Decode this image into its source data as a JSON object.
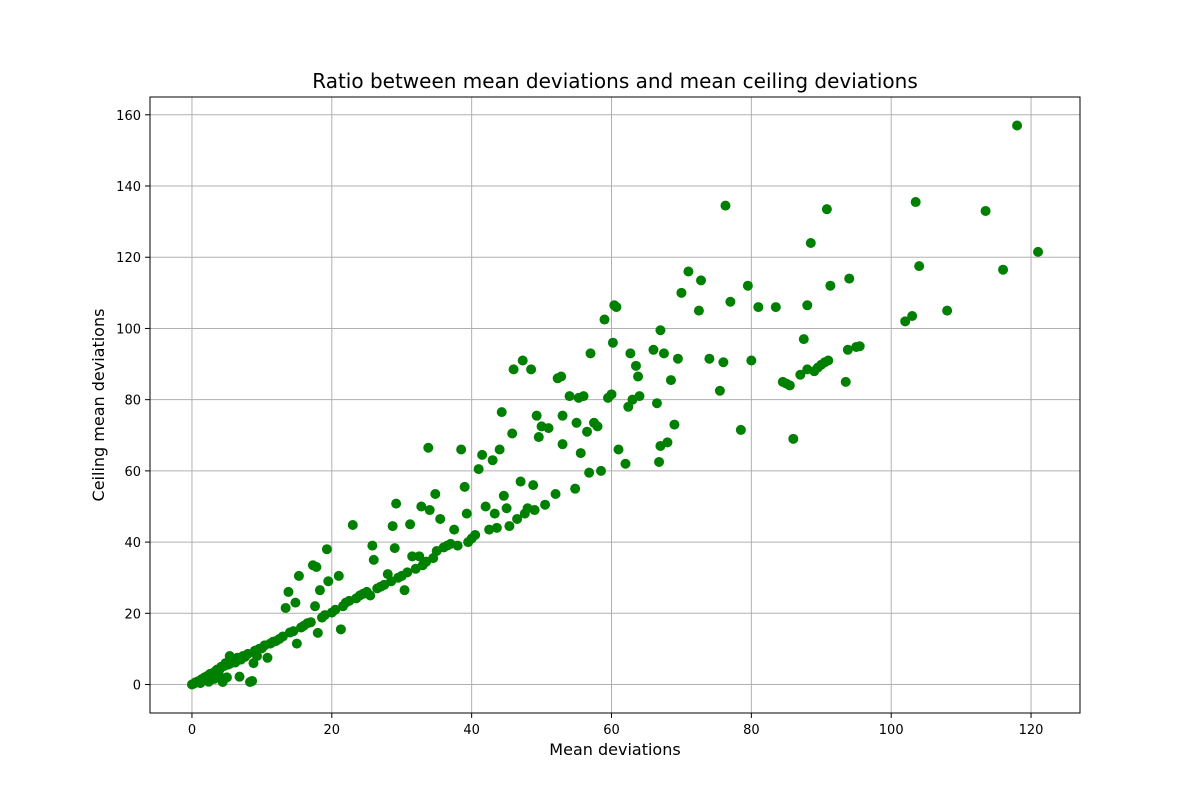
{
  "chart_data": {
    "type": "scatter",
    "title": "Ratio between mean deviations and mean ceiling deviations",
    "xlabel": "Mean deviations",
    "ylabel": "Ceiling mean deviations",
    "xlim": [
      -6,
      127
    ],
    "ylim": [
      -8,
      165
    ],
    "xticks": [
      0,
      20,
      40,
      60,
      80,
      100,
      120
    ],
    "yticks": [
      0,
      20,
      40,
      60,
      80,
      100,
      120,
      140,
      160
    ],
    "grid": true,
    "marker_color": "#008000",
    "series": [
      {
        "points": [
          [
            0,
            0
          ],
          [
            0.3,
            0.3
          ],
          [
            0.5,
            0.6
          ],
          [
            0.8,
            0.8
          ],
          [
            1,
            1
          ],
          [
            1.2,
            0.4
          ],
          [
            1.4,
            1.5
          ],
          [
            1.6,
            1.2
          ],
          [
            1.8,
            2
          ],
          [
            2,
            1.9
          ],
          [
            2.2,
            2.4
          ],
          [
            2.4,
            0.8
          ],
          [
            2.6,
            3
          ],
          [
            2.8,
            2.4
          ],
          [
            3,
            3.2
          ],
          [
            3.2,
            1.6
          ],
          [
            3.4,
            3.8
          ],
          [
            3.6,
            4.2
          ],
          [
            3.8,
            3
          ],
          [
            4,
            4.4
          ],
          [
            4.2,
            5
          ],
          [
            4.4,
            0.7
          ],
          [
            4.6,
            5.2
          ],
          [
            4.8,
            6
          ],
          [
            5,
            2
          ],
          [
            5.2,
            5.6
          ],
          [
            5.4,
            8
          ],
          [
            5.6,
            6
          ],
          [
            5.8,
            6.4
          ],
          [
            6,
            7
          ],
          [
            6.2,
            6.2
          ],
          [
            6.5,
            7.5
          ],
          [
            6.8,
            2.2
          ],
          [
            7,
            7
          ],
          [
            7.3,
            8
          ],
          [
            7.6,
            7.8
          ],
          [
            8,
            8.6
          ],
          [
            8.3,
            0.7
          ],
          [
            8.6,
            1
          ],
          [
            8.8,
            6
          ],
          [
            9,
            9.5
          ],
          [
            9.3,
            8
          ],
          [
            9.6,
            10
          ],
          [
            10,
            10.2
          ],
          [
            10.4,
            11
          ],
          [
            10.8,
            7.5
          ],
          [
            11.2,
            11.5
          ],
          [
            11.6,
            12
          ],
          [
            12,
            12.2
          ],
          [
            12.5,
            12.8
          ],
          [
            13,
            13.5
          ],
          [
            13.4,
            21.5
          ],
          [
            13.8,
            26
          ],
          [
            14,
            14.6
          ],
          [
            14.5,
            15
          ],
          [
            14.8,
            23
          ],
          [
            15,
            11.5
          ],
          [
            15.3,
            30.5
          ],
          [
            15.6,
            16
          ],
          [
            16,
            16.5
          ],
          [
            16.5,
            17.2
          ],
          [
            17,
            17.5
          ],
          [
            17.3,
            33.5
          ],
          [
            17.6,
            22
          ],
          [
            17.8,
            33
          ],
          [
            18,
            14.5
          ],
          [
            18.3,
            26.5
          ],
          [
            18.6,
            18.8
          ],
          [
            19,
            19.5
          ],
          [
            19.3,
            38
          ],
          [
            19.5,
            29
          ],
          [
            20,
            20.2
          ],
          [
            20.5,
            21
          ],
          [
            21,
            30.5
          ],
          [
            21.3,
            15.5
          ],
          [
            21.6,
            22
          ],
          [
            22,
            23
          ],
          [
            22.5,
            23.5
          ],
          [
            23,
            44.8
          ],
          [
            23.5,
            24.2
          ],
          [
            24,
            25
          ],
          [
            24.5,
            25.5
          ],
          [
            25,
            26
          ],
          [
            25.5,
            25
          ],
          [
            25.8,
            39
          ],
          [
            26,
            35
          ],
          [
            26.5,
            27
          ],
          [
            27,
            27.5
          ],
          [
            27.5,
            28
          ],
          [
            28,
            31
          ],
          [
            28.5,
            29
          ],
          [
            28.7,
            44.5
          ],
          [
            29,
            38.3
          ],
          [
            29.2,
            50.8
          ],
          [
            29.5,
            30
          ],
          [
            30,
            30.5
          ],
          [
            30.4,
            26.5
          ],
          [
            30.8,
            31.5
          ],
          [
            31.2,
            45
          ],
          [
            31.5,
            36
          ],
          [
            32,
            32.5
          ],
          [
            32.5,
            36
          ],
          [
            32.8,
            50
          ],
          [
            33,
            33.5
          ],
          [
            33.5,
            34.5
          ],
          [
            33.8,
            66.5
          ],
          [
            34,
            49
          ],
          [
            34.5,
            35.5
          ],
          [
            34.8,
            53.5
          ],
          [
            35,
            37.5
          ],
          [
            35.5,
            46.5
          ],
          [
            36,
            38.5
          ],
          [
            36.5,
            39
          ],
          [
            37,
            39.5
          ],
          [
            37.5,
            43.5
          ],
          [
            38,
            39
          ],
          [
            38.5,
            66
          ],
          [
            39,
            55.5
          ],
          [
            39.3,
            48
          ],
          [
            39.5,
            40
          ],
          [
            40,
            41
          ],
          [
            40.5,
            42
          ],
          [
            41,
            60.5
          ],
          [
            41.5,
            64.5
          ],
          [
            42,
            50
          ],
          [
            42.5,
            43.5
          ],
          [
            43,
            63
          ],
          [
            43.3,
            48
          ],
          [
            43.6,
            44
          ],
          [
            44,
            66
          ],
          [
            44.3,
            76.5
          ],
          [
            44.6,
            53
          ],
          [
            45,
            49.5
          ],
          [
            45.4,
            44.5
          ],
          [
            45.8,
            70.5
          ],
          [
            46,
            88.5
          ],
          [
            46.5,
            46.5
          ],
          [
            47,
            57
          ],
          [
            47.3,
            91
          ],
          [
            47.6,
            48
          ],
          [
            48,
            49.5
          ],
          [
            48.5,
            88.5
          ],
          [
            48.8,
            56
          ],
          [
            49,
            49
          ],
          [
            49.3,
            75.5
          ],
          [
            49.6,
            69.5
          ],
          [
            50,
            72.5
          ],
          [
            50.5,
            50.5
          ],
          [
            51,
            72
          ],
          [
            52,
            53.5
          ],
          [
            52.3,
            86
          ],
          [
            52.8,
            86.5
          ],
          [
            53,
            67.5
          ],
          [
            53,
            75.5
          ],
          [
            54,
            81
          ],
          [
            54.8,
            55
          ],
          [
            55,
            73.5
          ],
          [
            55.3,
            80.5
          ],
          [
            55.6,
            65
          ],
          [
            56,
            81
          ],
          [
            56.5,
            71
          ],
          [
            56.8,
            59.5
          ],
          [
            57,
            93
          ],
          [
            57.5,
            73.5
          ],
          [
            58,
            72.5
          ],
          [
            58.5,
            60
          ],
          [
            59,
            102.5
          ],
          [
            59.5,
            80.5
          ],
          [
            60,
            81.5
          ],
          [
            60.2,
            96
          ],
          [
            60.4,
            106.5
          ],
          [
            60.7,
            106
          ],
          [
            61,
            66
          ],
          [
            62,
            62
          ],
          [
            62.4,
            78
          ],
          [
            62.7,
            93
          ],
          [
            63,
            80
          ],
          [
            63.5,
            89.5
          ],
          [
            63.8,
            86.5
          ],
          [
            64,
            81
          ],
          [
            66,
            94
          ],
          [
            66.5,
            79
          ],
          [
            66.8,
            62.5
          ],
          [
            67,
            67
          ],
          [
            67,
            99.5
          ],
          [
            67.5,
            93
          ],
          [
            68,
            68
          ],
          [
            68.5,
            85.5
          ],
          [
            69,
            73
          ],
          [
            69.5,
            91.5
          ],
          [
            70,
            110
          ],
          [
            71,
            116
          ],
          [
            72.5,
            105
          ],
          [
            72.8,
            113.5
          ],
          [
            74,
            91.5
          ],
          [
            75.5,
            82.5
          ],
          [
            76,
            90.5
          ],
          [
            76.3,
            134.5
          ],
          [
            77,
            107.5
          ],
          [
            78.5,
            71.5
          ],
          [
            79.5,
            112
          ],
          [
            80,
            91
          ],
          [
            81,
            106
          ],
          [
            83.5,
            106
          ],
          [
            84.5,
            85
          ],
          [
            85,
            84.5
          ],
          [
            85.5,
            84
          ],
          [
            86,
            69
          ],
          [
            87,
            87
          ],
          [
            87.5,
            97
          ],
          [
            88,
            88.5
          ],
          [
            88,
            106.5
          ],
          [
            88.5,
            124
          ],
          [
            89,
            88
          ],
          [
            89.5,
            89
          ],
          [
            90,
            89.8
          ],
          [
            90.5,
            90.5
          ],
          [
            90.8,
            133.5
          ],
          [
            91,
            91
          ],
          [
            91.3,
            112
          ],
          [
            93.5,
            85
          ],
          [
            93.8,
            94
          ],
          [
            94,
            114
          ],
          [
            95,
            94.8
          ],
          [
            95.5,
            95
          ],
          [
            102,
            102
          ],
          [
            103,
            103.5
          ],
          [
            103.5,
            135.5
          ],
          [
            104,
            117.5
          ],
          [
            108,
            105
          ],
          [
            113.5,
            133
          ],
          [
            116,
            116.5
          ],
          [
            118,
            157
          ],
          [
            121,
            121.5
          ]
        ]
      }
    ]
  }
}
